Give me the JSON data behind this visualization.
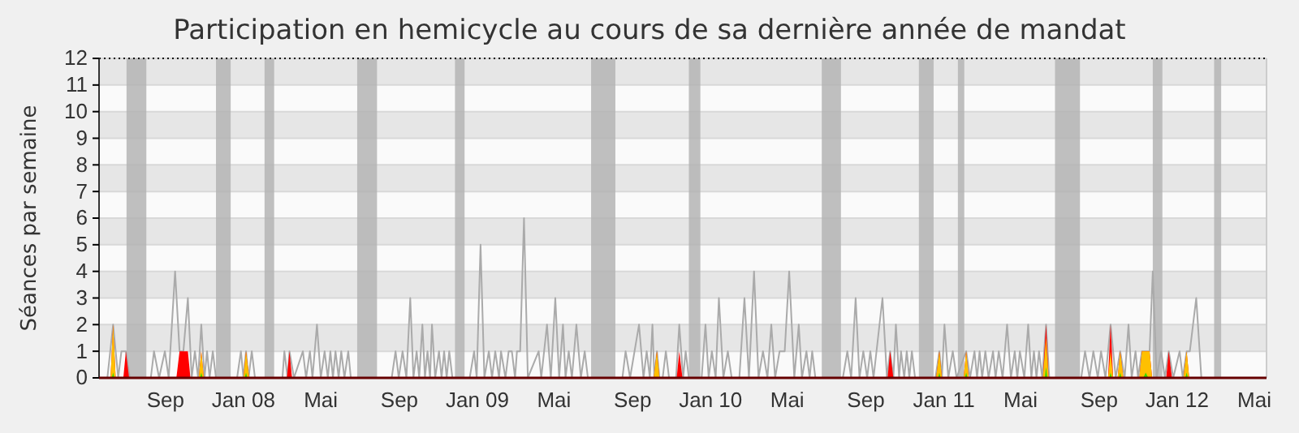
{
  "chart_data": {
    "type": "line",
    "title": "Participation en hemicycle au cours de sa dernière année de mandat",
    "ylabel": "Séances par semaine",
    "xlim": [
      "2007-05-20",
      "2012-05-20"
    ],
    "xticks": [
      {
        "value": "2007-09-01",
        "label": "Sep"
      },
      {
        "value": "2008-01-01",
        "label": "Jan 08"
      },
      {
        "value": "2008-05-01",
        "label": "Mai"
      },
      {
        "value": "2008-09-01",
        "label": "Sep"
      },
      {
        "value": "2009-01-01",
        "label": "Jan 09"
      },
      {
        "value": "2009-05-01",
        "label": "Mai"
      },
      {
        "value": "2009-09-01",
        "label": "Sep"
      },
      {
        "value": "2010-01-01",
        "label": "Jan 10"
      },
      {
        "value": "2010-05-01",
        "label": "Mai"
      },
      {
        "value": "2010-09-01",
        "label": "Sep"
      },
      {
        "value": "2011-01-01",
        "label": "Jan 11"
      },
      {
        "value": "2011-05-01",
        "label": "Mai"
      },
      {
        "value": "2011-09-01",
        "label": "Sep"
      },
      {
        "value": "2012-01-01",
        "label": "Jan 12"
      },
      {
        "value": "2012-05-01",
        "label": "Mai"
      }
    ],
    "ylim": [
      0,
      12
    ],
    "yticks": [
      0,
      1,
      2,
      3,
      4,
      5,
      6,
      7,
      8,
      9,
      10,
      11,
      12
    ],
    "grid": "y",
    "marker": "none",
    "line_style": "solid",
    "bands": [
      {
        "axis": "x",
        "from": "2007-07-02",
        "to": "2007-08-02",
        "color": "#b4b4b4"
      },
      {
        "axis": "x",
        "from": "2007-11-19",
        "to": "2007-12-12",
        "color": "#b4b4b4"
      },
      {
        "axis": "x",
        "from": "2008-02-03",
        "to": "2008-02-18",
        "color": "#b4b4b4"
      },
      {
        "axis": "x",
        "from": "2008-06-27",
        "to": "2008-07-28",
        "color": "#b4b4b4"
      },
      {
        "axis": "x",
        "from": "2008-11-27",
        "to": "2008-12-12",
        "color": "#b4b4b4"
      },
      {
        "axis": "x",
        "from": "2009-06-28",
        "to": "2009-08-05",
        "color": "#b4b4b4"
      },
      {
        "axis": "x",
        "from": "2009-11-28",
        "to": "2009-12-16",
        "color": "#b4b4b4"
      },
      {
        "axis": "x",
        "from": "2010-06-24",
        "to": "2010-07-24",
        "color": "#b4b4b4"
      },
      {
        "axis": "x",
        "from": "2010-11-23",
        "to": "2010-12-16",
        "color": "#b4b4b4"
      },
      {
        "axis": "x",
        "from": "2011-01-23",
        "to": "2011-02-02",
        "color": "#b4b4b4"
      },
      {
        "axis": "x",
        "from": "2011-06-24",
        "to": "2011-08-02",
        "color": "#b4b4b4"
      },
      {
        "axis": "x",
        "from": "2011-11-24",
        "to": "2011-12-09",
        "color": "#b4b4b4"
      },
      {
        "axis": "x",
        "from": "2012-02-28",
        "to": "2012-03-10",
        "color": "#b4b4b4"
      }
    ],
    "series": [
      {
        "type": "line",
        "color": "#aaaaaa",
        "x": [
          "2007-05-20",
          "2007-06-02",
          "2007-06-11",
          "2007-06-19",
          "2007-06-24",
          "2007-07-01",
          "2007-07-07",
          "2007-08-09",
          "2007-08-14",
          "2007-08-22",
          "2007-08-31",
          "2007-09-06",
          "2007-09-16",
          "2007-09-23",
          "2007-09-29",
          "2007-10-06",
          "2007-10-12",
          "2007-10-17",
          "2007-10-22",
          "2007-10-27",
          "2007-11-01",
          "2007-11-05",
          "2007-11-09",
          "2007-11-14",
          "2007-11-19",
          "2007-12-22",
          "2007-12-28",
          "2008-01-01",
          "2008-01-05",
          "2008-01-09",
          "2008-01-14",
          "2008-01-19",
          "2008-03-02",
          "2008-03-05",
          "2008-03-10",
          "2008-03-13",
          "2008-03-20",
          "2008-04-03",
          "2008-04-08",
          "2008-04-14",
          "2008-04-18",
          "2008-04-25",
          "2008-05-01",
          "2008-05-07",
          "2008-05-12",
          "2008-05-16",
          "2008-05-20",
          "2008-05-24",
          "2008-05-29",
          "2008-06-02",
          "2008-06-07",
          "2008-06-13",
          "2008-06-17",
          "2008-08-20",
          "2008-08-26",
          "2008-08-31",
          "2008-09-06",
          "2008-09-12",
          "2008-09-18",
          "2008-09-23",
          "2008-09-28",
          "2008-10-02",
          "2008-10-07",
          "2008-10-11",
          "2008-10-15",
          "2008-10-19",
          "2008-10-22",
          "2008-10-27",
          "2008-11-02",
          "2008-11-06",
          "2008-11-10",
          "2008-11-14",
          "2008-11-18",
          "2008-11-23",
          "2008-12-20",
          "2008-12-27",
          "2008-12-31",
          "2009-01-06",
          "2009-01-12",
          "2009-01-19",
          "2009-01-24",
          "2009-01-29",
          "2009-02-04",
          "2009-02-07",
          "2009-02-14",
          "2009-02-19",
          "2009-02-24",
          "2009-03-01",
          "2009-03-04",
          "2009-03-09",
          "2009-03-15",
          "2009-03-21",
          "2009-04-07",
          "2009-04-11",
          "2009-04-20",
          "2009-04-26",
          "2009-05-03",
          "2009-05-09",
          "2009-05-15",
          "2009-05-19",
          "2009-05-24",
          "2009-05-29",
          "2009-06-05",
          "2009-06-12",
          "2009-06-18",
          "2009-06-23",
          "2009-08-16",
          "2009-08-21",
          "2009-08-28",
          "2009-09-11",
          "2009-09-18",
          "2009-09-23",
          "2009-09-28",
          "2009-10-02",
          "2009-10-05",
          "2009-10-09",
          "2009-10-13",
          "2009-10-18",
          "2009-10-23",
          "2009-10-28",
          "2009-11-08",
          "2009-11-13",
          "2009-11-19",
          "2009-11-23",
          "2009-11-28",
          "2009-12-18",
          "2009-12-24",
          "2009-12-29",
          "2010-01-03",
          "2010-01-09",
          "2010-01-14",
          "2010-01-21",
          "2010-01-28",
          "2010-02-03",
          "2010-02-15",
          "2010-02-23",
          "2010-03-02",
          "2010-03-10",
          "2010-03-17",
          "2010-03-24",
          "2010-03-31",
          "2010-04-06",
          "2010-04-12",
          "2010-04-19",
          "2010-04-27",
          "2010-05-04",
          "2010-05-12",
          "2010-05-19",
          "2010-05-24",
          "2010-05-31",
          "2010-06-05",
          "2010-06-09",
          "2010-06-14",
          "2010-07-27",
          "2010-08-03",
          "2010-08-09",
          "2010-08-16",
          "2010-08-22",
          "2010-08-28",
          "2010-09-03",
          "2010-09-08",
          "2010-09-13",
          "2010-09-27",
          "2010-10-04",
          "2010-10-09",
          "2010-10-14",
          "2010-10-18",
          "2010-10-23",
          "2010-10-26",
          "2010-10-31",
          "2010-11-04",
          "2010-11-08",
          "2010-11-12",
          "2010-11-17",
          "2010-12-19",
          "2010-12-25",
          "2010-12-29",
          "2011-01-02",
          "2011-01-08",
          "2011-01-15",
          "2011-01-21",
          "2011-02-05",
          "2011-02-11",
          "2011-02-18",
          "2011-02-22",
          "2011-02-26",
          "2011-03-02",
          "2011-03-07",
          "2011-03-12",
          "2011-03-19",
          "2011-03-23",
          "2011-03-28",
          "2011-04-03",
          "2011-04-10",
          "2011-04-16",
          "2011-04-22",
          "2011-04-26",
          "2011-04-30",
          "2011-05-07",
          "2011-05-13",
          "2011-05-18",
          "2011-05-22",
          "2011-05-26",
          "2011-05-30",
          "2011-06-04",
          "2011-06-10",
          "2011-06-15",
          "2011-08-04",
          "2011-08-10",
          "2011-08-17",
          "2011-08-23",
          "2011-08-30",
          "2011-09-04",
          "2011-09-11",
          "2011-09-19",
          "2011-09-27",
          "2011-10-04",
          "2011-10-11",
          "2011-10-17",
          "2011-10-22",
          "2011-10-28",
          "2011-11-01",
          "2011-11-07",
          "2011-11-13",
          "2011-11-19",
          "2011-11-24",
          "2011-11-30",
          "2011-12-07",
          "2011-12-13",
          "2011-12-19",
          "2011-12-26",
          "2012-01-05",
          "2012-01-10",
          "2012-01-16",
          "2012-01-21",
          "2012-01-31",
          "2012-02-08",
          "2012-05-20"
        ],
        "values": [
          0,
          0,
          2,
          0,
          1,
          1,
          0,
          0,
          1,
          0,
          1,
          0,
          4,
          1,
          1,
          3,
          0,
          1,
          0,
          2,
          0,
          1,
          0,
          1,
          0,
          0,
          1,
          0,
          1,
          0,
          1,
          0,
          0,
          1,
          0,
          1,
          0,
          1,
          0,
          1,
          0,
          2,
          0,
          1,
          0,
          1,
          0,
          1,
          0,
          1,
          0,
          1,
          0,
          0,
          1,
          0,
          1,
          0,
          3,
          0,
          1,
          0,
          2,
          0,
          1,
          0,
          2,
          0,
          1,
          0,
          1,
          0,
          1,
          0,
          0,
          1,
          0,
          5,
          0,
          1,
          0,
          1,
          0,
          1,
          0,
          1,
          1,
          0,
          1,
          1,
          6,
          0,
          1,
          0,
          2,
          0,
          3,
          0,
          2,
          0,
          1,
          0,
          2,
          0,
          1,
          0,
          0,
          1,
          0,
          2,
          0,
          1,
          0,
          2,
          0,
          1,
          0,
          0,
          1,
          0,
          0,
          2,
          0,
          1,
          0,
          0,
          2,
          0,
          1,
          0,
          3,
          0,
          1,
          0,
          0,
          3,
          0,
          4,
          0,
          1,
          0,
          2,
          0,
          1,
          1,
          4,
          0,
          2,
          0,
          1,
          0,
          1,
          0,
          0,
          1,
          0,
          3,
          0,
          1,
          0,
          1,
          0,
          3,
          0,
          1,
          0,
          2,
          0,
          1,
          0,
          1,
          0,
          1,
          0,
          0,
          1,
          0,
          2,
          0,
          1,
          0,
          1,
          0,
          1,
          0,
          1,
          0,
          1,
          0,
          1,
          0,
          1,
          0,
          2,
          0,
          1,
          0,
          1,
          0,
          2,
          0,
          1,
          0,
          1,
          0,
          2,
          0,
          0,
          1,
          0,
          1,
          0,
          1,
          0,
          2,
          0,
          1,
          0,
          2,
          0,
          1,
          0,
          1,
          1,
          1,
          4,
          0,
          1,
          0,
          1,
          0,
          1,
          0,
          1,
          1,
          3,
          0,
          0
        ]
      },
      {
        "type": "area",
        "color": "#ff0000",
        "x": [
          "2007-05-20",
          "2007-06-07",
          "2007-06-11",
          "2007-06-15",
          "2007-06-27",
          "2007-07-01",
          "2007-07-06",
          "2007-09-18",
          "2007-09-23",
          "2007-10-06",
          "2007-10-10",
          "2007-10-23",
          "2007-10-27",
          "2007-10-31",
          "2008-01-01",
          "2008-01-05",
          "2008-01-10",
          "2008-03-09",
          "2008-03-13",
          "2008-03-17",
          "2009-10-04",
          "2009-10-09",
          "2009-10-13",
          "2009-11-09",
          "2009-11-13",
          "2009-11-18",
          "2010-10-05",
          "2010-10-09",
          "2010-10-14",
          "2010-12-20",
          "2010-12-25",
          "2010-12-29",
          "2011-02-01",
          "2011-02-05",
          "2011-02-09",
          "2011-06-05",
          "2011-06-10",
          "2011-06-14",
          "2011-09-15",
          "2011-09-19",
          "2011-09-23",
          "2011-09-30",
          "2011-10-04",
          "2011-10-09",
          "2011-11-03",
          "2011-11-07",
          "2011-11-19",
          "2011-11-23",
          "2011-12-15",
          "2011-12-19",
          "2011-12-24",
          "2012-01-11",
          "2012-01-16",
          "2012-01-20",
          "2012-05-20"
        ],
        "values": [
          0,
          0,
          2,
          0,
          0,
          1,
          0,
          0,
          1,
          1,
          0,
          0,
          1,
          0,
          0,
          1,
          0,
          0,
          1,
          0,
          0,
          1,
          0,
          0,
          1,
          0,
          0,
          1,
          0,
          0,
          1,
          0,
          0,
          1,
          0,
          0,
          2,
          0,
          0,
          2,
          0,
          0,
          1,
          0,
          0,
          1,
          1,
          0,
          0,
          1,
          0,
          0,
          1,
          0,
          0
        ]
      },
      {
        "type": "area",
        "color": "#ffc000",
        "x": [
          "2007-06-07",
          "2007-06-11",
          "2007-06-15",
          "2007-10-23",
          "2007-10-27",
          "2007-10-31",
          "2008-01-01",
          "2008-01-05",
          "2008-01-10",
          "2009-10-04",
          "2009-10-09",
          "2009-10-13",
          "2010-12-20",
          "2010-12-25",
          "2010-12-29",
          "2011-02-01",
          "2011-02-05",
          "2011-02-09",
          "2011-06-05",
          "2011-06-10",
          "2011-06-14",
          "2011-09-15",
          "2011-09-19",
          "2011-09-23",
          "2011-09-30",
          "2011-10-04",
          "2011-10-09",
          "2011-11-03",
          "2011-11-07",
          "2011-11-19",
          "2011-11-23",
          "2012-01-11",
          "2012-01-16",
          "2012-01-20"
        ],
        "values": [
          0,
          2,
          0,
          0,
          1,
          0,
          0,
          1,
          0,
          0,
          1,
          0,
          0,
          1,
          0,
          0,
          1,
          0,
          0,
          1.5,
          0,
          0,
          1,
          0,
          0,
          1,
          0,
          0,
          1,
          1,
          0,
          0,
          1,
          0
        ]
      },
      {
        "type": "area",
        "color": "#33dd00",
        "x": [
          "2007-06-09",
          "2007-06-11",
          "2007-06-13",
          "2007-10-25",
          "2007-10-27",
          "2007-10-29",
          "2008-01-03",
          "2008-01-05",
          "2008-01-07",
          "2010-12-23",
          "2010-12-25",
          "2010-12-27",
          "2011-02-03",
          "2011-02-05",
          "2011-02-07",
          "2011-06-08",
          "2011-06-10",
          "2011-06-12",
          "2011-09-17",
          "2011-09-19",
          "2011-09-21",
          "2011-10-02",
          "2011-10-04",
          "2011-10-06",
          "2011-11-09",
          "2011-11-13",
          "2011-11-17",
          "2012-01-14",
          "2012-01-16",
          "2012-01-18"
        ],
        "values": [
          0,
          0.2,
          0,
          0,
          0.2,
          0,
          0,
          0.2,
          0,
          0,
          0.2,
          0,
          0,
          0.2,
          0,
          0,
          0.4,
          0,
          0,
          0.2,
          0,
          0,
          0.2,
          0,
          0,
          0.2,
          0,
          0,
          0.2,
          0
        ]
      }
    ]
  }
}
